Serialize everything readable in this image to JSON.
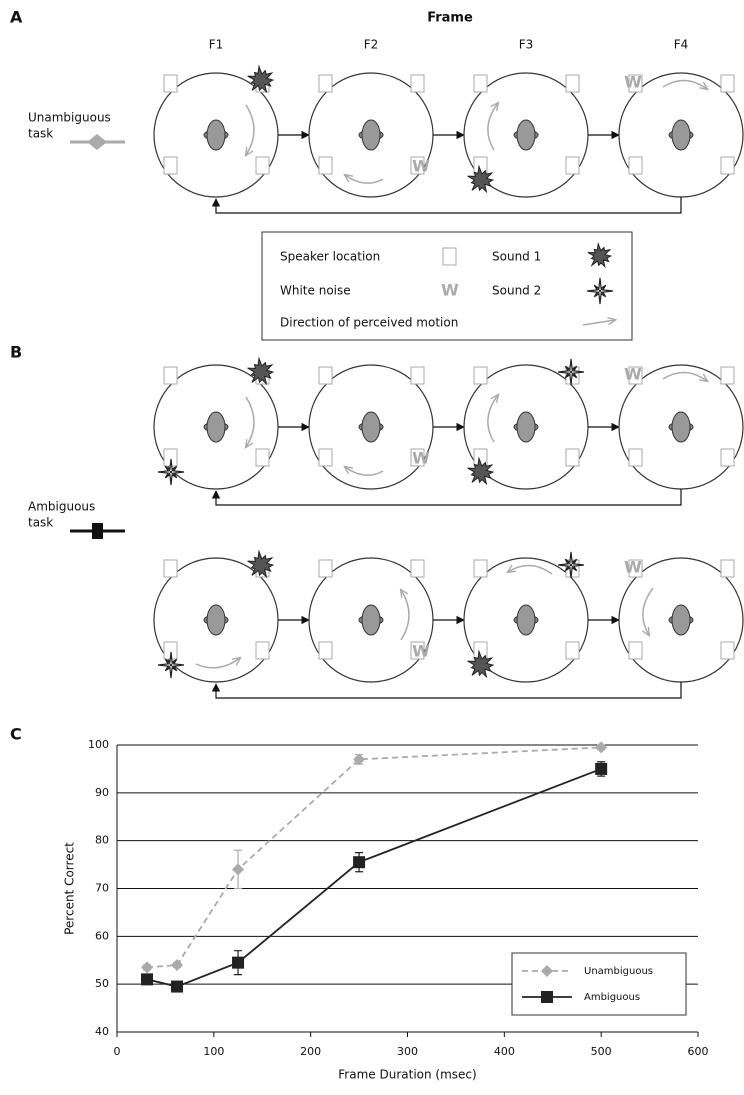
{
  "panel_a": {
    "label": "A",
    "header": "Frame",
    "frames": [
      "F1",
      "F2",
      "F3",
      "F4"
    ],
    "task_label": [
      "Unambiguous",
      "task"
    ]
  },
  "legend": {
    "speaker": "Speaker location",
    "sound1": "Sound 1",
    "noise": "White noise",
    "sound2": "Sound 2",
    "motion": "Direction of perceived motion",
    "noise_glyph": "W"
  },
  "panel_b": {
    "label": "B",
    "task_label": [
      "Ambiguous",
      "task"
    ]
  },
  "panel_c": {
    "label": "C"
  },
  "chart_data": {
    "type": "line",
    "x": [
      31,
      62,
      125,
      250,
      500
    ],
    "series": [
      {
        "name": "Unambiguous",
        "color": "#aaaaaa",
        "dashed": true,
        "marker": "diamond",
        "values": [
          53.5,
          54,
          74,
          97,
          99.5
        ],
        "errors": [
          0.5,
          0.5,
          4,
          1,
          0.5
        ]
      },
      {
        "name": "Ambiguous",
        "color": "#222222",
        "dashed": false,
        "marker": "square",
        "values": [
          51,
          49.5,
          54.5,
          75.5,
          95
        ],
        "errors": [
          1,
          1,
          2.5,
          2,
          1.5
        ]
      }
    ],
    "xlim": [
      0,
      600
    ],
    "xticks": [
      0,
      100,
      200,
      300,
      400,
      500,
      600
    ],
    "ylim": [
      40,
      100
    ],
    "yticks": [
      40,
      50,
      60,
      70,
      80,
      90,
      100
    ],
    "xlabel": "Frame Duration (msec)",
    "ylabel": "Percent Correct",
    "grid": true,
    "legend": "lower right"
  }
}
